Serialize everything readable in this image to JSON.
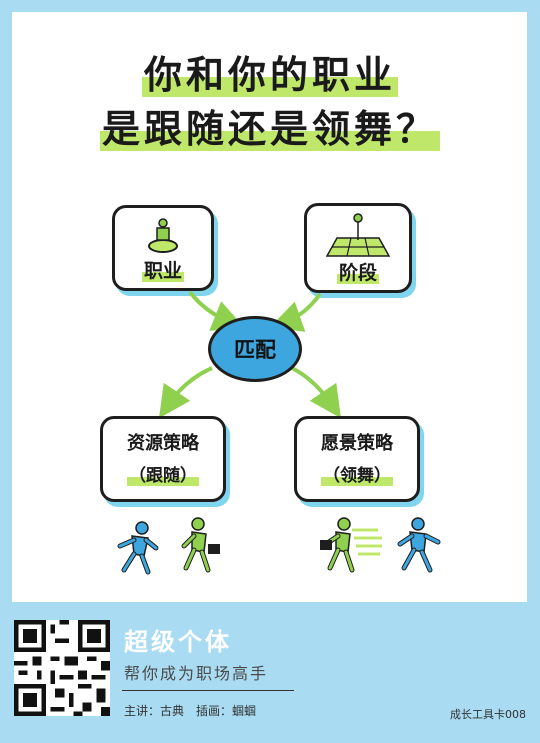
{
  "title": {
    "line1": "你和你的职业",
    "line2": "是跟随还是领舞？"
  },
  "boxes": {
    "career": "职业",
    "stage": "阶段",
    "resource": "资源策略",
    "resource_sub": "（跟随）",
    "vision": "愿景策略",
    "vision_sub": "（领舞）"
  },
  "center": "匹配",
  "footer": {
    "brand": "超级个体",
    "slogan": "帮你成为职场高手",
    "credits": "主讲：古典　插画：蝈蝈",
    "card_no": "成长工具卡008"
  },
  "colors": {
    "accent_blue": "#3ea6de",
    "accent_green": "#8fd14f",
    "highlight": "#bfe86a",
    "background": "#a9dcf3"
  }
}
